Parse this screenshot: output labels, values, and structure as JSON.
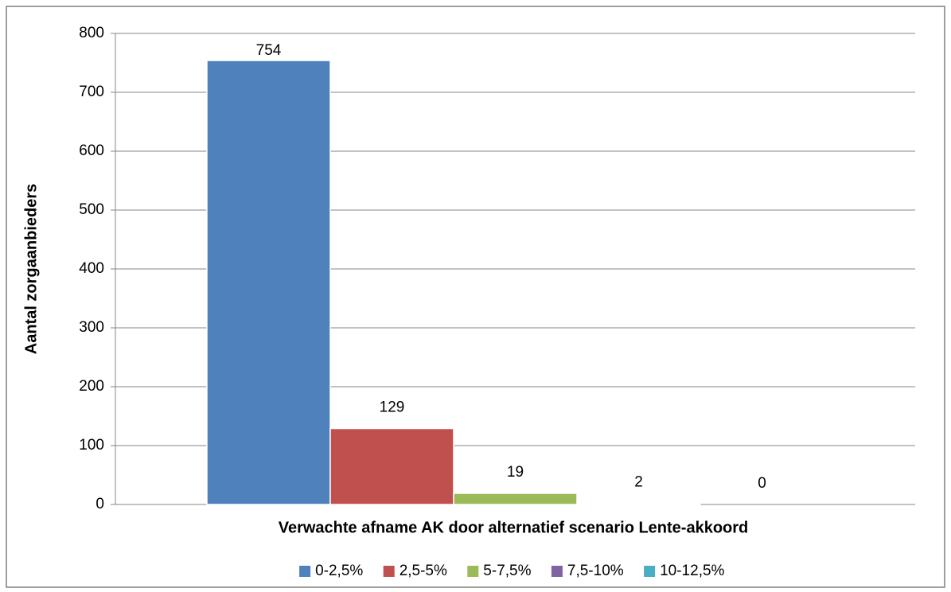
{
  "chart_data": {
    "type": "bar",
    "x_label": "Verwachte afname AK door alternatief scenario Lente-akkoord",
    "y_label": "Aantal zorgaanbieders",
    "categories": [
      null
    ],
    "series": [
      {
        "name": "0-2,5%",
        "color": "#4f81bd",
        "values": [
          754
        ]
      },
      {
        "name": "2,5-5%",
        "color": "#c0504d",
        "values": [
          129
        ]
      },
      {
        "name": "5-7,5%",
        "color": "#9bbb59",
        "values": [
          19
        ]
      },
      {
        "name": "7,5-10%",
        "color": "#8064a2",
        "values": [
          2
        ]
      },
      {
        "name": "10-12,5%",
        "color": "#4bacc6",
        "values": [
          0
        ]
      }
    ],
    "ylim": [
      0,
      800
    ],
    "yticks": [
      0,
      100,
      200,
      300,
      400,
      500,
      600,
      700,
      800
    ],
    "grid": true,
    "legend": "bottom"
  }
}
